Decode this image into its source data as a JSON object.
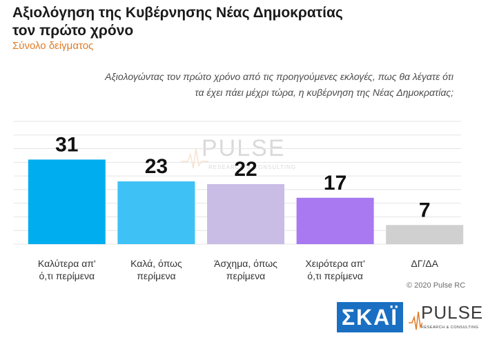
{
  "header": {
    "title_line1": "Αξιολόγηση της Κυβέρνησης Νέας Δημοκρατίας",
    "title_line2": "τον πρώτο χρόνο",
    "subtitle": "Σύνολο δείγματος",
    "question_line1": "Αξιολογώντας τον πρώτο χρόνο από τις προηγούμενες εκλογές, πως θα λέγατε ότι",
    "question_line2": "τα έχει πάει μέχρι τώρα, η κυβέρνηση της Νέας Δημοκρατίας;"
  },
  "chart_data": {
    "type": "bar",
    "categories": [
      [
        "Καλύτερα απ'",
        "ό,τι περίμενα"
      ],
      [
        "Καλά, όπως",
        "περίμενα"
      ],
      [
        "Άσχημα, όπως",
        "περίμενα"
      ],
      [
        "Χειρότερα απ'",
        "ό,τι περίμενα"
      ],
      [
        "ΔΓ/ΔΑ"
      ]
    ],
    "values": [
      31,
      23,
      22,
      17,
      7
    ],
    "colors": [
      "#00aeef",
      "#3ec2f5",
      "#c9bde6",
      "#a879f0",
      "#d0d0d0"
    ],
    "ylim": [
      0,
      45
    ],
    "grid": true,
    "legend": "none"
  },
  "footer": {
    "copyright": "© 2020 Pulse RC",
    "skai_logo_text": "ΣΚΑΪ",
    "pulse_logo_text": "PULSE",
    "pulse_logo_tagline": "RESEARCH & CONSULTING"
  },
  "watermark": {
    "text": "PULSE",
    "tagline": "RESEARCH & CONSULTING"
  }
}
